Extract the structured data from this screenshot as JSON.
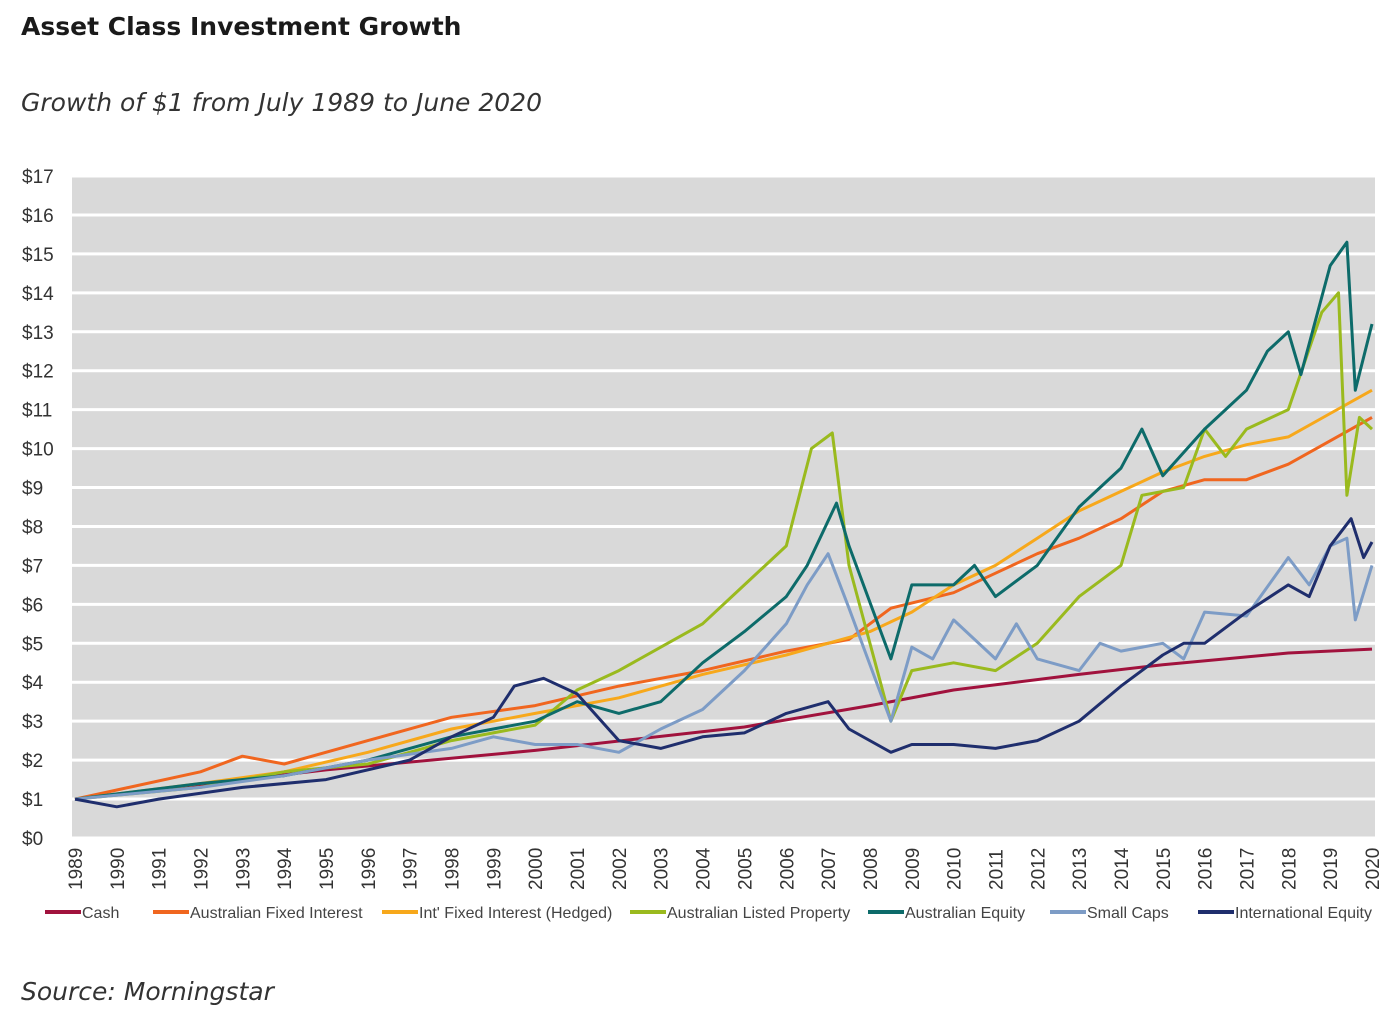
{
  "title": "Asset Class Investment Growth",
  "subtitle": "Growth of $1 from July 1989 to June 2020",
  "source": "Source: Morningstar",
  "chart_data": {
    "type": "line",
    "xlim": [
      1989,
      2020
    ],
    "ylim": [
      0,
      17
    ],
    "grid": true,
    "legend_position": "bottom",
    "background_color": "#d9d9d9",
    "y_ticks": [
      "$0",
      "$1",
      "$2",
      "$3",
      "$4",
      "$5",
      "$6",
      "$7",
      "$8",
      "$9",
      "$10",
      "$11",
      "$12",
      "$13",
      "$14",
      "$15",
      "$16",
      "$17"
    ],
    "x_ticks": [
      "1989",
      "1990",
      "1991",
      "1992",
      "1993",
      "1994",
      "1995",
      "1996",
      "1997",
      "1998",
      "1999",
      "2000",
      "2001",
      "2002",
      "2003",
      "2004",
      "2005",
      "2006",
      "2007",
      "2008",
      "2009",
      "2010",
      "2011",
      "2012",
      "2013",
      "2014",
      "2015",
      "2016",
      "2017",
      "2018",
      "2019",
      "2020"
    ],
    "series": [
      {
        "name": "Cash",
        "color": "#a1123d",
        "points": [
          [
            1989,
            1.0
          ],
          [
            1995,
            1.75
          ],
          [
            2000,
            2.25
          ],
          [
            2005,
            2.85
          ],
          [
            2008,
            3.4
          ],
          [
            2010,
            3.8
          ],
          [
            2013,
            4.2
          ],
          [
            2015,
            4.45
          ],
          [
            2018,
            4.75
          ],
          [
            2020,
            4.85
          ]
        ]
      },
      {
        "name": "Australian Fixed Interest",
        "color": "#f0661f",
        "points": [
          [
            1989,
            1.0
          ],
          [
            1992,
            1.7
          ],
          [
            1993,
            2.1
          ],
          [
            1994,
            1.9
          ],
          [
            1996,
            2.5
          ],
          [
            1998,
            3.1
          ],
          [
            2000,
            3.4
          ],
          [
            2002,
            3.9
          ],
          [
            2004,
            4.3
          ],
          [
            2006,
            4.8
          ],
          [
            2007.5,
            5.1
          ],
          [
            2008.5,
            5.9
          ],
          [
            2010,
            6.3
          ],
          [
            2011,
            6.8
          ],
          [
            2012,
            7.3
          ],
          [
            2013,
            7.7
          ],
          [
            2014,
            8.2
          ],
          [
            2015,
            8.9
          ],
          [
            2016,
            9.2
          ],
          [
            2017,
            9.2
          ],
          [
            2018,
            9.6
          ],
          [
            2019,
            10.2
          ],
          [
            2020,
            10.8
          ]
        ]
      },
      {
        "name": "Int' Fixed Interest (Hedged)",
        "color": "#f7a81b",
        "points": [
          [
            1989,
            1.0
          ],
          [
            1992,
            1.4
          ],
          [
            1994,
            1.7
          ],
          [
            1996,
            2.2
          ],
          [
            1998,
            2.8
          ],
          [
            2000,
            3.2
          ],
          [
            2002,
            3.6
          ],
          [
            2004,
            4.2
          ],
          [
            2006,
            4.7
          ],
          [
            2008,
            5.3
          ],
          [
            2009,
            5.8
          ],
          [
            2010,
            6.5
          ],
          [
            2011,
            7.0
          ],
          [
            2012,
            7.7
          ],
          [
            2013,
            8.4
          ],
          [
            2014,
            8.9
          ],
          [
            2015,
            9.4
          ],
          [
            2016,
            9.8
          ],
          [
            2017,
            10.1
          ],
          [
            2018,
            10.3
          ],
          [
            2019,
            10.9
          ],
          [
            2020,
            11.5
          ]
        ]
      },
      {
        "name": "Australian Listed Property",
        "color": "#9aba1e",
        "points": [
          [
            1989,
            1.0
          ],
          [
            1992,
            1.3
          ],
          [
            1994,
            1.7
          ],
          [
            1996,
            1.9
          ],
          [
            1998,
            2.5
          ],
          [
            2000,
            2.9
          ],
          [
            2001,
            3.8
          ],
          [
            2002,
            4.3
          ],
          [
            2003,
            4.9
          ],
          [
            2004,
            5.5
          ],
          [
            2005,
            6.5
          ],
          [
            2006,
            7.5
          ],
          [
            2006.6,
            10.0
          ],
          [
            2007.1,
            10.4
          ],
          [
            2007.5,
            7.0
          ],
          [
            2008.5,
            3.0
          ],
          [
            2009,
            4.3
          ],
          [
            2010,
            4.5
          ],
          [
            2011,
            4.3
          ],
          [
            2012,
            5.0
          ],
          [
            2013,
            6.2
          ],
          [
            2014,
            7.0
          ],
          [
            2014.5,
            8.8
          ],
          [
            2015.5,
            9.0
          ],
          [
            2016,
            10.5
          ],
          [
            2016.5,
            9.8
          ],
          [
            2017,
            10.5
          ],
          [
            2018,
            11.0
          ],
          [
            2018.8,
            13.5
          ],
          [
            2019.2,
            14.0
          ],
          [
            2019.4,
            8.8
          ],
          [
            2019.7,
            10.8
          ],
          [
            2020,
            10.5
          ]
        ]
      },
      {
        "name": "Australian Equity",
        "color": "#0d6b6a",
        "points": [
          [
            1989,
            1.0
          ],
          [
            1992,
            1.4
          ],
          [
            1994,
            1.6
          ],
          [
            1996,
            2.0
          ],
          [
            1998,
            2.6
          ],
          [
            2000,
            3.0
          ],
          [
            2001,
            3.5
          ],
          [
            2002,
            3.2
          ],
          [
            2003,
            3.5
          ],
          [
            2004,
            4.5
          ],
          [
            2005,
            5.3
          ],
          [
            2006,
            6.2
          ],
          [
            2006.5,
            7.0
          ],
          [
            2007.2,
            8.6
          ],
          [
            2007.5,
            7.5
          ],
          [
            2008.5,
            4.6
          ],
          [
            2009,
            6.5
          ],
          [
            2010,
            6.5
          ],
          [
            2010.5,
            7.0
          ],
          [
            2011,
            6.2
          ],
          [
            2012,
            7.0
          ],
          [
            2013,
            8.5
          ],
          [
            2014,
            9.5
          ],
          [
            2014.5,
            10.5
          ],
          [
            2015,
            9.3
          ],
          [
            2016,
            10.5
          ],
          [
            2016.5,
            11.0
          ],
          [
            2017,
            11.5
          ],
          [
            2017.5,
            12.5
          ],
          [
            2018,
            13.0
          ],
          [
            2018.3,
            11.9
          ],
          [
            2019,
            14.7
          ],
          [
            2019.4,
            15.3
          ],
          [
            2019.6,
            11.5
          ],
          [
            2020,
            13.2
          ]
        ]
      },
      {
        "name": "Small Caps",
        "color": "#7d9cc6",
        "points": [
          [
            1989,
            1.0
          ],
          [
            1992,
            1.3
          ],
          [
            1994,
            1.6
          ],
          [
            1996,
            2.0
          ],
          [
            1998,
            2.3
          ],
          [
            1999,
            2.6
          ],
          [
            2000,
            2.4
          ],
          [
            2001,
            2.4
          ],
          [
            2002,
            2.2
          ],
          [
            2003,
            2.8
          ],
          [
            2004,
            3.3
          ],
          [
            2005,
            4.3
          ],
          [
            2006,
            5.5
          ],
          [
            2006.5,
            6.5
          ],
          [
            2007,
            7.3
          ],
          [
            2007.5,
            5.9
          ],
          [
            2008.5,
            3.0
          ],
          [
            2009,
            4.9
          ],
          [
            2009.5,
            4.6
          ],
          [
            2010,
            5.6
          ],
          [
            2011,
            4.6
          ],
          [
            2011.5,
            5.5
          ],
          [
            2012,
            4.6
          ],
          [
            2013,
            4.3
          ],
          [
            2013.5,
            5.0
          ],
          [
            2014,
            4.8
          ],
          [
            2015,
            5.0
          ],
          [
            2015.5,
            4.6
          ],
          [
            2016,
            5.8
          ],
          [
            2017,
            5.7
          ],
          [
            2018,
            7.2
          ],
          [
            2018.5,
            6.5
          ],
          [
            2019,
            7.5
          ],
          [
            2019.4,
            7.7
          ],
          [
            2019.6,
            5.6
          ],
          [
            2020,
            7.0
          ]
        ]
      },
      {
        "name": "International Equity",
        "color": "#1f2e6d",
        "points": [
          [
            1989,
            1.0
          ],
          [
            1990,
            0.8
          ],
          [
            1991,
            1.0
          ],
          [
            1993,
            1.3
          ],
          [
            1995,
            1.5
          ],
          [
            1997,
            2.0
          ],
          [
            1998,
            2.6
          ],
          [
            1999,
            3.1
          ],
          [
            1999.5,
            3.9
          ],
          [
            2000.2,
            4.1
          ],
          [
            2001,
            3.7
          ],
          [
            2002,
            2.5
          ],
          [
            2003,
            2.3
          ],
          [
            2004,
            2.6
          ],
          [
            2005,
            2.7
          ],
          [
            2006,
            3.2
          ],
          [
            2007,
            3.5
          ],
          [
            2007.5,
            2.8
          ],
          [
            2008.5,
            2.2
          ],
          [
            2009,
            2.4
          ],
          [
            2010,
            2.4
          ],
          [
            2011,
            2.3
          ],
          [
            2012,
            2.5
          ],
          [
            2013,
            3.0
          ],
          [
            2014,
            3.9
          ],
          [
            2015,
            4.7
          ],
          [
            2015.5,
            5.0
          ],
          [
            2016,
            5.0
          ],
          [
            2017,
            5.8
          ],
          [
            2018,
            6.5
          ],
          [
            2018.5,
            6.2
          ],
          [
            2019,
            7.5
          ],
          [
            2019.5,
            8.2
          ],
          [
            2019.8,
            7.2
          ],
          [
            2020,
            7.6
          ]
        ]
      }
    ]
  }
}
